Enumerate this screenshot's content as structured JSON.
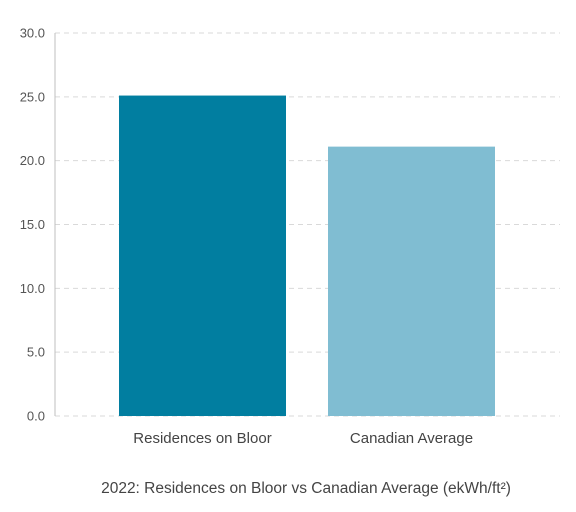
{
  "chart_data": {
    "type": "bar",
    "title": "2022: Residences on Bloor vs Canadian Average (ekWh/ft²)",
    "categories": [
      "Residences on Bloor",
      "Canadian Average"
    ],
    "values": [
      25.1,
      21.1
    ],
    "colors": [
      "#017ea0",
      "#80bdd2"
    ],
    "ylim": [
      0,
      30
    ],
    "yticks": [
      "0.0",
      "5.0",
      "10.0",
      "15.0",
      "20.0",
      "25.0",
      "30.0"
    ],
    "xlabel": "",
    "ylabel": "",
    "grid": true,
    "legend": "none"
  }
}
